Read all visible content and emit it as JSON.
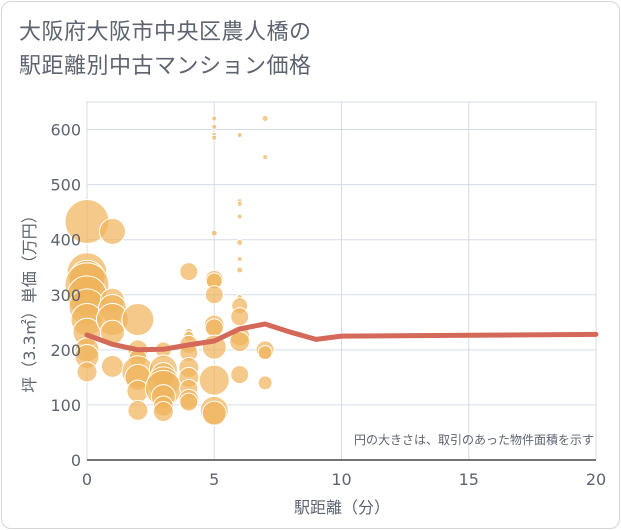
{
  "title_lines": [
    "大阪府大阪市中央区農人橋の",
    "駅距離別中古マンション価格"
  ],
  "chart_data": {
    "type": "scatter",
    "title": "大阪府大阪市中央区農人橋の駅距離別中古マンション価格",
    "xlabel": "駅距離（分）",
    "ylabel": "坪（3.3㎡）単価（万円）",
    "xlim": [
      0,
      20
    ],
    "ylim": [
      0,
      650
    ],
    "xticks": [
      0,
      5,
      10,
      15,
      20
    ],
    "yticks": [
      0,
      100,
      200,
      300,
      400,
      500,
      600
    ],
    "grid": true,
    "annotation": "円の大きさは、取引のあった物件面積を示す",
    "colors": {
      "bubble": "#f0b45c",
      "line": "#d4695a",
      "grid": "#d5dce6",
      "text": "#5d6470"
    },
    "points": [
      {
        "x": 0,
        "y": 433,
        "size": 22
      },
      {
        "x": 0,
        "y": 340,
        "size": 20
      },
      {
        "x": 0,
        "y": 330,
        "size": 18
      },
      {
        "x": 0,
        "y": 318,
        "size": 22
      },
      {
        "x": 0,
        "y": 298,
        "size": 20
      },
      {
        "x": 0,
        "y": 278,
        "size": 18
      },
      {
        "x": 0,
        "y": 255,
        "size": 16
      },
      {
        "x": 0,
        "y": 232,
        "size": 14
      },
      {
        "x": 0,
        "y": 200,
        "size": 12
      },
      {
        "x": 0,
        "y": 188,
        "size": 12
      },
      {
        "x": 0,
        "y": 160,
        "size": 10
      },
      {
        "x": 1,
        "y": 415,
        "size": 13
      },
      {
        "x": 1,
        "y": 290,
        "size": 12
      },
      {
        "x": 1,
        "y": 275,
        "size": 14
      },
      {
        "x": 1,
        "y": 255,
        "size": 16
      },
      {
        "x": 1,
        "y": 232,
        "size": 12
      },
      {
        "x": 1,
        "y": 170,
        "size": 11
      },
      {
        "x": 2,
        "y": 255,
        "size": 16
      },
      {
        "x": 2,
        "y": 200,
        "size": 10
      },
      {
        "x": 2,
        "y": 185,
        "size": 9
      },
      {
        "x": 2,
        "y": 160,
        "size": 16
      },
      {
        "x": 2,
        "y": 150,
        "size": 13
      },
      {
        "x": 2,
        "y": 125,
        "size": 11
      },
      {
        "x": 2,
        "y": 90,
        "size": 10
      },
      {
        "x": 3,
        "y": 200,
        "size": 8
      },
      {
        "x": 3,
        "y": 165,
        "size": 14
      },
      {
        "x": 3,
        "y": 155,
        "size": 12
      },
      {
        "x": 3,
        "y": 140,
        "size": 16
      },
      {
        "x": 3,
        "y": 130,
        "size": 18
      },
      {
        "x": 3,
        "y": 115,
        "size": 12
      },
      {
        "x": 3,
        "y": 98,
        "size": 10
      },
      {
        "x": 3,
        "y": 88,
        "size": 10
      },
      {
        "x": 4,
        "y": 342,
        "size": 9
      },
      {
        "x": 4,
        "y": 232,
        "size": 4
      },
      {
        "x": 4,
        "y": 225,
        "size": 5
      },
      {
        "x": 4,
        "y": 210,
        "size": 9
      },
      {
        "x": 4,
        "y": 195,
        "size": 9
      },
      {
        "x": 4,
        "y": 168,
        "size": 10
      },
      {
        "x": 4,
        "y": 150,
        "size": 10
      },
      {
        "x": 4,
        "y": 130,
        "size": 9
      },
      {
        "x": 4,
        "y": 110,
        "size": 10
      },
      {
        "x": 4,
        "y": 105,
        "size": 9
      },
      {
        "x": 5,
        "y": 620,
        "size": 2.5
      },
      {
        "x": 5,
        "y": 605,
        "size": 2.5
      },
      {
        "x": 5,
        "y": 590,
        "size": 2.5
      },
      {
        "x": 5,
        "y": 585,
        "size": 2.5
      },
      {
        "x": 5,
        "y": 412,
        "size": 3
      },
      {
        "x": 5,
        "y": 328,
        "size": 9
      },
      {
        "x": 5,
        "y": 325,
        "size": 8
      },
      {
        "x": 5,
        "y": 300,
        "size": 9
      },
      {
        "x": 5,
        "y": 245,
        "size": 10
      },
      {
        "x": 5,
        "y": 240,
        "size": 9
      },
      {
        "x": 5,
        "y": 205,
        "size": 12
      },
      {
        "x": 5,
        "y": 145,
        "size": 15
      },
      {
        "x": 5,
        "y": 90,
        "size": 14
      },
      {
        "x": 5,
        "y": 85,
        "size": 12
      },
      {
        "x": 6,
        "y": 590,
        "size": 2.5
      },
      {
        "x": 6,
        "y": 470,
        "size": 2.5
      },
      {
        "x": 6,
        "y": 465,
        "size": 2.5
      },
      {
        "x": 6,
        "y": 442,
        "size": 2.5
      },
      {
        "x": 6,
        "y": 395,
        "size": 3
      },
      {
        "x": 6,
        "y": 365,
        "size": 2.5
      },
      {
        "x": 6,
        "y": 345,
        "size": 3
      },
      {
        "x": 6,
        "y": 295,
        "size": 3
      },
      {
        "x": 6,
        "y": 280,
        "size": 8
      },
      {
        "x": 6,
        "y": 260,
        "size": 9
      },
      {
        "x": 6,
        "y": 225,
        "size": 10
      },
      {
        "x": 6,
        "y": 215,
        "size": 10
      },
      {
        "x": 6,
        "y": 155,
        "size": 9
      },
      {
        "x": 7,
        "y": 620,
        "size": 3
      },
      {
        "x": 7,
        "y": 550,
        "size": 2.5
      },
      {
        "x": 7,
        "y": 200,
        "size": 9
      },
      {
        "x": 7,
        "y": 195,
        "size": 7
      },
      {
        "x": 7,
        "y": 140,
        "size": 7
      }
    ],
    "series": [
      {
        "type": "line",
        "x": [
          0,
          1,
          2,
          3,
          4,
          5,
          6,
          7,
          8,
          9,
          10,
          20
        ],
        "y": [
          227,
          210,
          200,
          201,
          209,
          216,
          238,
          247,
          232,
          219,
          225,
          228
        ]
      }
    ]
  }
}
